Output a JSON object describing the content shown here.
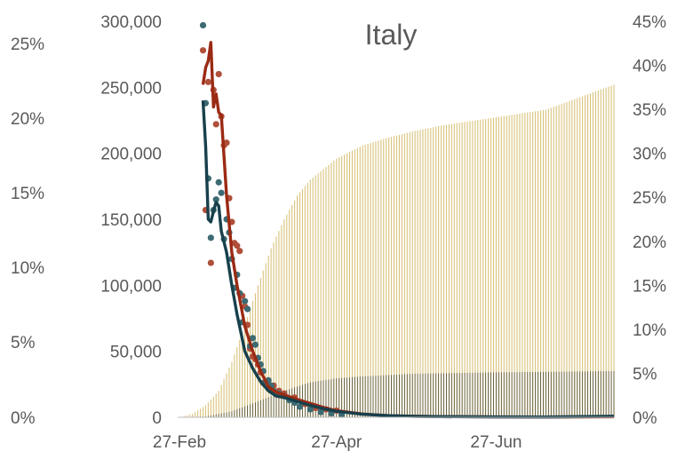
{
  "chart_data": {
    "type": "bar",
    "title": "Italy",
    "x_ticks": [
      "27-Feb",
      "27-Apr",
      "27-Jun"
    ],
    "x_tick_days": [
      0,
      60,
      121
    ],
    "x_range_days": [
      0,
      166
    ],
    "y_ticks": [
      "300,000",
      "250,000",
      "200,000",
      "150,000",
      "100,000",
      "50,000",
      "0"
    ],
    "y_range": [
      0,
      300000
    ],
    "y2_ticks": [
      "45%",
      "40%",
      "35%",
      "30%",
      "25%",
      "20%",
      "15%",
      "10%",
      "5%",
      "0%"
    ],
    "y2_range": [
      0,
      0.45
    ],
    "y3_ticks": [
      "25%",
      "20%",
      "15%",
      "10%",
      "5%",
      "0%"
    ],
    "y3_range": [
      0,
      0.2647
    ],
    "colors": {
      "cumulative_bars": "#d9c27a",
      "dark_bars": "#3a3a2a",
      "red_line": "#9b2a14",
      "teal_line": "#17404c",
      "red_dots": "#b0503a",
      "teal_dots": "#3d6b73",
      "axis": "#bfbfbf"
    },
    "series": [
      {
        "kind": "area-bars-large",
        "axis": "left",
        "days": [
          0,
          5,
          10,
          15,
          20,
          25,
          30,
          35,
          40,
          45,
          50,
          55,
          60,
          70,
          80,
          90,
          100,
          120,
          140,
          166
        ],
        "values": [
          0,
          2600,
          9000,
          20000,
          42000,
          70000,
          100000,
          128000,
          150000,
          168000,
          180000,
          188000,
          196000,
          206000,
          212000,
          217000,
          221000,
          227000,
          233000,
          252000
        ]
      },
      {
        "kind": "area-bars-small",
        "axis": "left",
        "days": [
          0,
          10,
          20,
          30,
          40,
          50,
          60,
          70,
          80,
          90,
          120,
          166
        ],
        "values": [
          0,
          600,
          4500,
          12000,
          20000,
          26500,
          29500,
          31000,
          32000,
          33000,
          34000,
          35000
        ]
      },
      {
        "kind": "line",
        "axis": "left",
        "color_key": "red_line",
        "days": [
          9,
          10,
          11,
          12,
          13,
          14,
          15,
          16,
          18,
          20,
          22,
          25,
          28,
          31,
          34,
          37,
          40,
          45,
          50,
          55,
          60,
          70,
          80,
          90,
          100,
          120,
          140,
          166
        ],
        "values": [
          252000,
          265000,
          270000,
          284000,
          235000,
          245000,
          231000,
          229000,
          168000,
          125000,
          100000,
          69000,
          50000,
          35000,
          23000,
          19000,
          17000,
          13500,
          10500,
          7500,
          5000,
          2500,
          1200,
          800,
          500,
          300,
          200,
          400
        ]
      },
      {
        "kind": "line",
        "axis": "left",
        "color_key": "teal_line",
        "days": [
          9,
          10,
          11,
          12,
          13,
          14,
          15,
          16,
          18,
          20,
          22,
          25,
          28,
          31,
          34,
          37,
          40,
          45,
          50,
          55,
          60,
          70,
          80,
          90,
          100,
          120,
          140,
          166
        ],
        "values": [
          240000,
          205000,
          150000,
          148000,
          156000,
          163000,
          160000,
          141000,
          125000,
          100000,
          78000,
          50000,
          37000,
          27000,
          20000,
          16000,
          15000,
          12000,
          9000,
          6500,
          4500,
          2300,
          1200,
          700,
          500,
          300,
          200,
          800
        ]
      },
      {
        "kind": "dots",
        "axis": "left",
        "color_key": "red_dots",
        "days": [
          9,
          10,
          11,
          12,
          13,
          14,
          15,
          16,
          17,
          18,
          19,
          20,
          21,
          22,
          23,
          24,
          25,
          26,
          27,
          28,
          29,
          30,
          31,
          32,
          34,
          36,
          38,
          40,
          44,
          48,
          52,
          56,
          60
        ],
        "values": [
          278000,
          157000,
          254000,
          117000,
          248000,
          222000,
          260000,
          228000,
          206000,
          208000,
          166000,
          148000,
          132000,
          130000,
          126000,
          92000,
          84000,
          70000,
          52000,
          46000,
          44000,
          40000,
          34000,
          26000,
          22000,
          24000,
          20000,
          18000,
          15000,
          10000,
          7000,
          6000,
          5000
        ]
      },
      {
        "kind": "dots",
        "axis": "left",
        "color_key": "teal_dots",
        "days": [
          9,
          10,
          11,
          12,
          13,
          14,
          15,
          16,
          17,
          18,
          19,
          20,
          21,
          22,
          23,
          24,
          25,
          26,
          27,
          28,
          29,
          30,
          31,
          32,
          33,
          34,
          35,
          36,
          38,
          40,
          42,
          44,
          46,
          50,
          54,
          58,
          62
        ],
        "values": [
          297000,
          238000,
          181000,
          136000,
          157000,
          165000,
          178000,
          170000,
          135000,
          150000,
          140000,
          120000,
          98000,
          108000,
          94000,
          72000,
          88000,
          82000,
          54000,
          60000,
          55000,
          45000,
          40000,
          35000,
          27000,
          28000,
          24000,
          20000,
          18000,
          16000,
          13000,
          11000,
          8000,
          6000,
          4000,
          3000,
          2000
        ]
      }
    ]
  }
}
